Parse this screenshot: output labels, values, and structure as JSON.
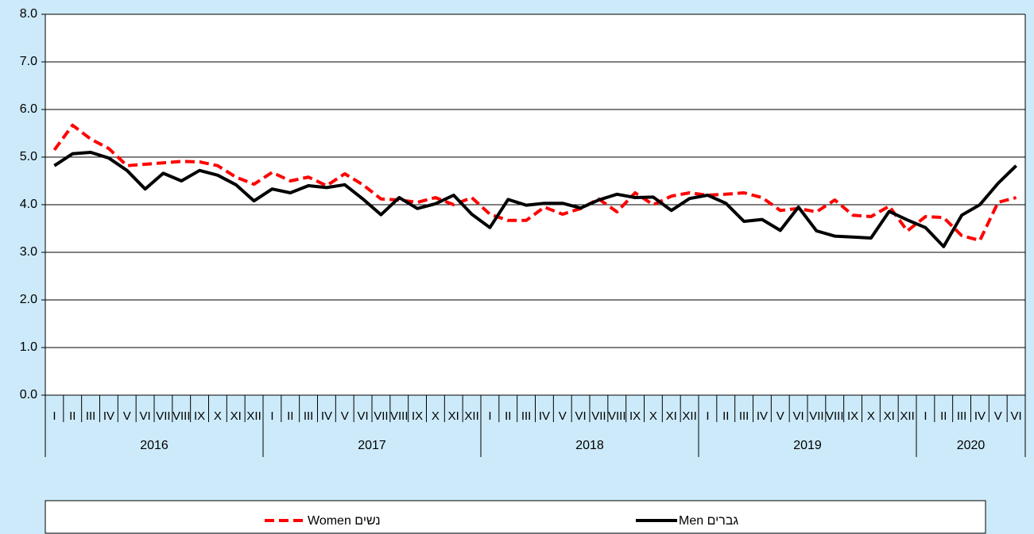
{
  "chart_data": {
    "type": "line",
    "categories": [
      "I",
      "II",
      "III",
      "IV",
      "V",
      "VI",
      "VII",
      "VIII",
      "IX",
      "X",
      "XI",
      "XII",
      "I",
      "II",
      "III",
      "IV",
      "V",
      "VI",
      "VII",
      "VIII",
      "IX",
      "X",
      "XI",
      "XII",
      "I",
      "II",
      "III",
      "IV",
      "V",
      "VI",
      "VII",
      "VIII",
      "IX",
      "X",
      "XI",
      "XII",
      "I",
      "II",
      "III",
      "IV",
      "V",
      "VI",
      "VII",
      "VIII",
      "IX",
      "X",
      "XI",
      "XII",
      "I",
      "II",
      "III",
      "IV",
      "V",
      "VI"
    ],
    "years": [
      "2016",
      "2017",
      "2018",
      "2019",
      "2020"
    ],
    "series": [
      {
        "name": "Women  נשים",
        "color": "#ff0000",
        "dashed": true,
        "values": [
          5.15,
          5.67,
          5.38,
          5.18,
          4.82,
          4.85,
          4.88,
          4.91,
          4.9,
          4.82,
          4.58,
          4.43,
          4.68,
          4.5,
          4.58,
          4.4,
          4.65,
          4.42,
          4.12,
          4.1,
          4.05,
          4.15,
          4.0,
          4.15,
          3.8,
          3.67,
          3.67,
          3.95,
          3.8,
          3.92,
          4.12,
          3.85,
          4.25,
          4.0,
          4.18,
          4.25,
          4.2,
          4.22,
          4.25,
          4.15,
          3.88,
          3.92,
          3.85,
          4.1,
          3.78,
          3.75,
          3.97,
          3.45,
          3.75,
          3.73,
          3.35,
          3.25,
          4.05,
          4.15
        ]
      },
      {
        "name": "Men  גברים",
        "color": "#000000",
        "dashed": false,
        "values": [
          4.82,
          5.07,
          5.1,
          4.98,
          4.72,
          4.33,
          4.66,
          4.5,
          4.72,
          4.62,
          4.42,
          4.08,
          4.33,
          4.25,
          4.4,
          4.36,
          4.42,
          4.12,
          3.79,
          4.15,
          3.92,
          4.02,
          4.2,
          3.8,
          3.52,
          4.11,
          3.99,
          4.03,
          4.03,
          3.93,
          4.1,
          4.22,
          4.15,
          4.16,
          3.88,
          4.13,
          4.2,
          4.03,
          3.65,
          3.69,
          3.46,
          3.95,
          3.45,
          3.34,
          3.32,
          3.3,
          3.86,
          3.68,
          3.52,
          3.12,
          3.78,
          4.0,
          4.45,
          4.82
        ]
      }
    ],
    "ylim": [
      0,
      8
    ],
    "yticks": [
      {
        "value": 0,
        "label": "0.0"
      },
      {
        "value": 1,
        "label": "1.0"
      },
      {
        "value": 2,
        "label": "2.0"
      },
      {
        "value": 3,
        "label": "3.0"
      },
      {
        "value": 4,
        "label": "4.0"
      },
      {
        "value": 5,
        "label": "5.0"
      },
      {
        "value": 6,
        "label": "6.0"
      },
      {
        "value": 7,
        "label": "7.0"
      },
      {
        "value": 8,
        "label": "8.0"
      }
    ],
    "grid": true
  }
}
